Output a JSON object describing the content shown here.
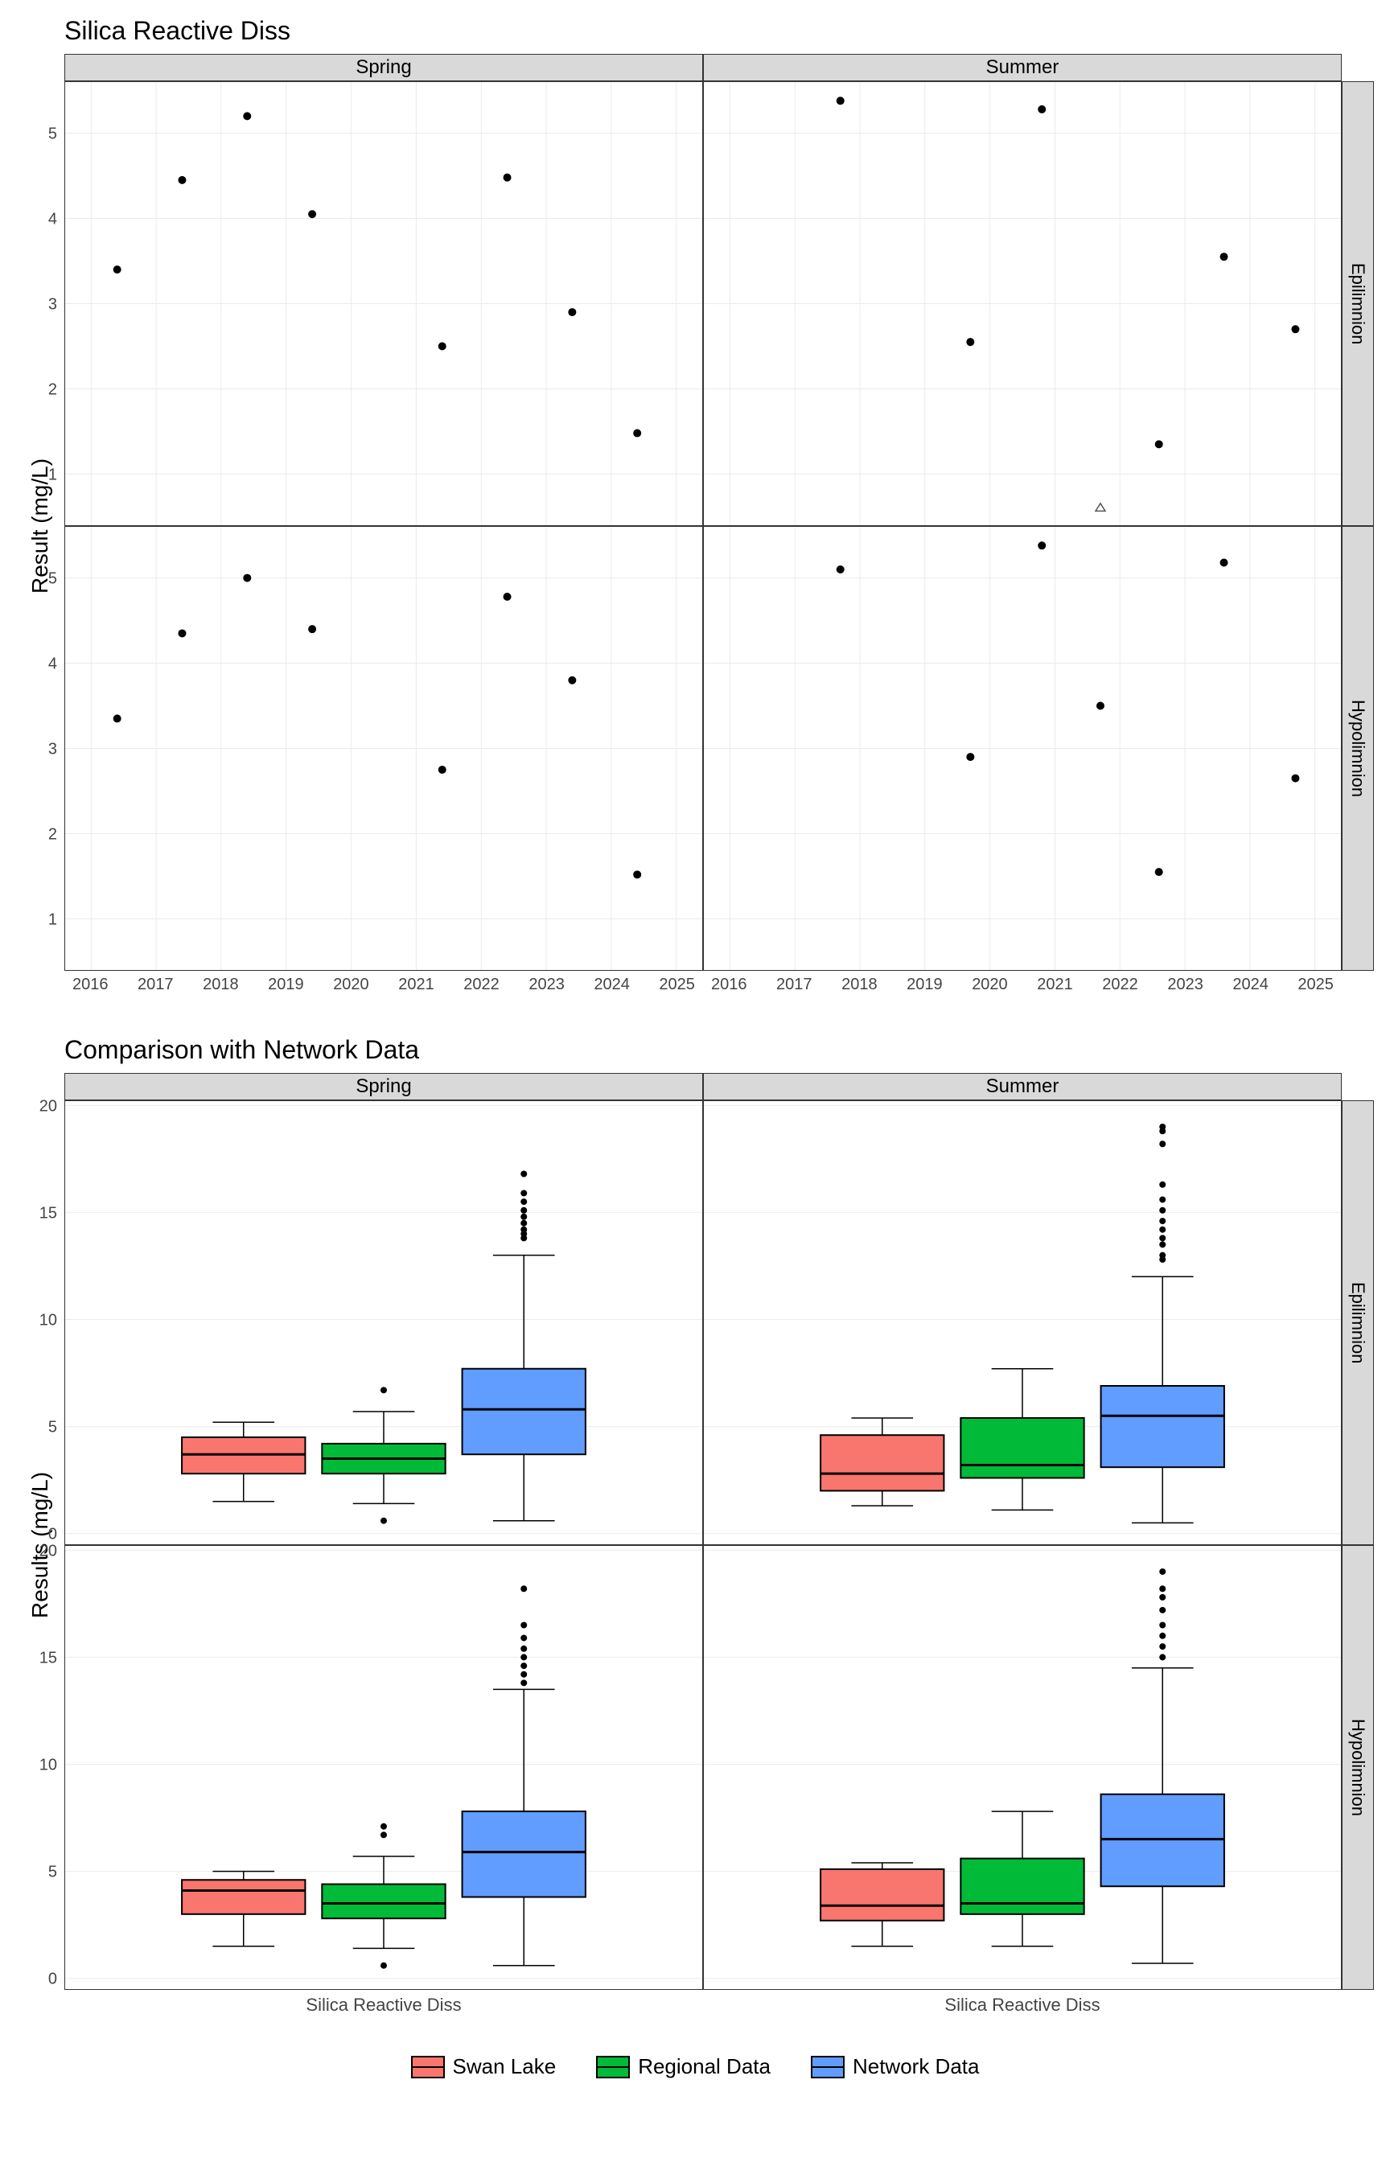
{
  "titles": {
    "scatter": "Silica Reactive Diss",
    "box": "Comparison with Network Data",
    "yaxis_scatter": "Result (mg/L)",
    "yaxis_box": "Results (mg/L)",
    "xaxis_box": "Silica Reactive Diss"
  },
  "facets": {
    "cols": [
      "Spring",
      "Summer"
    ],
    "rows": [
      "Epilimnion",
      "Hypolimnion"
    ]
  },
  "scatter": {
    "xmin": 2015.6,
    "xmax": 2025.4,
    "xticks": [
      2016,
      2017,
      2018,
      2019,
      2020,
      2021,
      2022,
      2023,
      2024,
      2025
    ],
    "ymin": 0.4,
    "ymax": 5.6,
    "yticks": [
      1,
      2,
      3,
      4,
      5
    ],
    "grid_color": "#ebebeb",
    "point_radius": 5,
    "panels": {
      "Spring_Epilimnion": {
        "points": [
          [
            2016.4,
            3.4
          ],
          [
            2017.4,
            4.45
          ],
          [
            2018.4,
            5.2
          ],
          [
            2019.4,
            4.05
          ],
          [
            2021.4,
            2.5
          ],
          [
            2022.4,
            4.48
          ],
          [
            2023.4,
            2.9
          ],
          [
            2024.4,
            1.48
          ]
        ],
        "open": []
      },
      "Summer_Epilimnion": {
        "points": [
          [
            2017.7,
            5.38
          ],
          [
            2019.7,
            2.55
          ],
          [
            2020.8,
            5.28
          ],
          [
            2022.6,
            1.35
          ],
          [
            2023.6,
            3.55
          ],
          [
            2024.7,
            2.7
          ]
        ],
        "open": [
          [
            2021.7,
            0.6
          ]
        ]
      },
      "Spring_Hypolimnion": {
        "points": [
          [
            2016.4,
            3.35
          ],
          [
            2017.4,
            4.35
          ],
          [
            2018.4,
            5.0
          ],
          [
            2019.4,
            4.4
          ],
          [
            2021.4,
            2.75
          ],
          [
            2022.4,
            4.78
          ],
          [
            2023.4,
            3.8
          ],
          [
            2024.4,
            1.52
          ]
        ],
        "open": []
      },
      "Summer_Hypolimnion": {
        "points": [
          [
            2017.7,
            5.1
          ],
          [
            2019.7,
            2.9
          ],
          [
            2020.8,
            5.38
          ],
          [
            2021.7,
            3.5
          ],
          [
            2022.6,
            1.55
          ],
          [
            2023.6,
            5.18
          ],
          [
            2024.7,
            2.65
          ]
        ],
        "open": []
      }
    }
  },
  "boxplot": {
    "ymin": -0.5,
    "ymax": 20.2,
    "yticks": [
      0,
      5,
      10,
      15,
      20
    ],
    "colors": {
      "Swan Lake": "#f8766d",
      "Regional Data": "#00ba38",
      "Network Data": "#619cff"
    },
    "series_order": [
      "Swan Lake",
      "Regional Data",
      "Network Data"
    ],
    "panels": {
      "Spring_Epilimnion": {
        "boxes": [
          {
            "q1": 2.8,
            "med": 3.7,
            "q3": 4.5,
            "wlo": 1.5,
            "whi": 5.2,
            "out": []
          },
          {
            "q1": 2.8,
            "med": 3.5,
            "q3": 4.2,
            "wlo": 1.4,
            "whi": 5.7,
            "out": [
              0.6,
              6.7
            ]
          },
          {
            "q1": 3.7,
            "med": 5.8,
            "q3": 7.7,
            "wlo": 0.6,
            "whi": 13.0,
            "out": [
              13.8,
              14.0,
              14.2,
              14.5,
              14.8,
              15.1,
              15.5,
              15.9,
              16.8
            ]
          }
        ]
      },
      "Summer_Epilimnion": {
        "boxes": [
          {
            "q1": 2.0,
            "med": 2.8,
            "q3": 4.6,
            "wlo": 1.3,
            "whi": 5.4,
            "out": []
          },
          {
            "q1": 2.6,
            "med": 3.2,
            "q3": 5.4,
            "wlo": 1.1,
            "whi": 7.7,
            "out": []
          },
          {
            "q1": 3.1,
            "med": 5.5,
            "q3": 6.9,
            "wlo": 0.5,
            "whi": 12.0,
            "out": [
              12.8,
              13.0,
              13.5,
              13.8,
              14.2,
              14.6,
              15.1,
              15.6,
              16.3,
              18.2,
              18.8,
              19.0
            ]
          }
        ]
      },
      "Spring_Hypolimnion": {
        "boxes": [
          {
            "q1": 3.0,
            "med": 4.1,
            "q3": 4.6,
            "wlo": 1.5,
            "whi": 5.0,
            "out": []
          },
          {
            "q1": 2.8,
            "med": 3.5,
            "q3": 4.4,
            "wlo": 1.4,
            "whi": 5.7,
            "out": [
              0.6,
              6.7,
              7.1
            ]
          },
          {
            "q1": 3.8,
            "med": 5.9,
            "q3": 7.8,
            "wlo": 0.6,
            "whi": 13.5,
            "out": [
              13.8,
              14.2,
              14.6,
              15.0,
              15.4,
              15.9,
              16.5,
              18.2
            ]
          }
        ]
      },
      "Summer_Hypolimnion": {
        "boxes": [
          {
            "q1": 2.7,
            "med": 3.4,
            "q3": 5.1,
            "wlo": 1.5,
            "whi": 5.4,
            "out": []
          },
          {
            "q1": 3.0,
            "med": 3.5,
            "q3": 5.6,
            "wlo": 1.5,
            "whi": 7.8,
            "out": []
          },
          {
            "q1": 4.3,
            "med": 6.5,
            "q3": 8.6,
            "wlo": 0.7,
            "whi": 14.5,
            "out": [
              15.0,
              15.5,
              16.0,
              16.5,
              17.2,
              17.8,
              18.2,
              19.0
            ]
          }
        ]
      }
    }
  },
  "legend": [
    "Swan Lake",
    "Regional Data",
    "Network Data"
  ]
}
